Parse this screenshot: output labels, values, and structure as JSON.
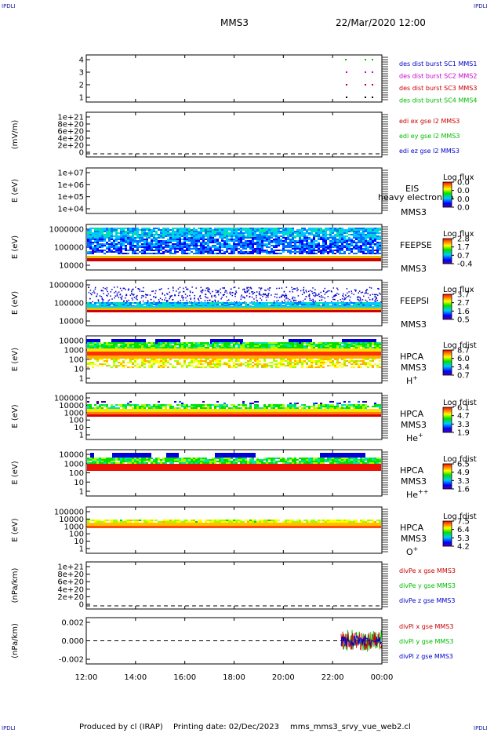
{
  "header": {
    "corner_left_top": "IPDLI",
    "corner_right_top": "IPDLI",
    "corner_left_bottom": "IPDLI",
    "corner_right_bottom": "IPDLI",
    "spacecraft": "MMS3",
    "datetime": "22/Mar/2020 12:00"
  },
  "footer": {
    "produced_by": "Produced by cl (IRAP)",
    "printing_date": "Printing date: 02/Dec/2023",
    "filename": "mms_mms3_srvy_vue_web2.cl"
  },
  "colors": {
    "mms1": "#0000cc",
    "mms2": "#cc00cc",
    "mms3": "#cc0000",
    "mms4": "#00bb00"
  },
  "chart_data": {
    "type": "multi-panel time series / spectrogram",
    "x_axis": {
      "range": [
        "12:00",
        "00:00"
      ],
      "tick_labels": [
        "12:00",
        "14:00",
        "16:00",
        "18:00",
        "20:00",
        "22:00",
        "00:00"
      ]
    },
    "panels": [
      {
        "id": "burst",
        "ylabel": "",
        "yticks": [
          "4",
          "3",
          "2",
          "1"
        ],
        "legend": [
          {
            "text": "des dist burst SC1 MMS1",
            "color": "#0000cc"
          },
          {
            "text": "des dist burst SC2 MMS2",
            "color": "#cc00cc"
          },
          {
            "text": "des dist burst SC3 MMS3",
            "color": "#cc0000"
          },
          {
            "text": "des dist burst SC4 MMS4",
            "color": "#00bb00"
          }
        ]
      },
      {
        "id": "edi",
        "ylabel": "(mV/m)",
        "yticks": [
          "1e+21",
          "8e+20",
          "6e+20",
          "4e+20",
          "2e+20",
          "0"
        ],
        "legend": [
          {
            "text": "edi ex gse l2 MMS3",
            "color": "#cc0000"
          },
          {
            "text": "edi ey gse l2 MMS3",
            "color": "#00bb00"
          },
          {
            "text": "edi ez gse l2 MMS3",
            "color": "#0000cc"
          }
        ]
      },
      {
        "id": "eis",
        "ylabel": "E (eV)",
        "yticks": [
          "1e+07",
          "1e+06",
          "1e+05",
          "1e+04"
        ],
        "instrument": "EIS",
        "spacecraft": "MMS3",
        "overlay_text": "heavy electron to",
        "colorbar": {
          "title": "Log flux",
          "ticks": [
            "0.0",
            "0.0",
            "0.0",
            "0.0"
          ]
        }
      },
      {
        "id": "feepse",
        "ylabel": "E (eV)",
        "yticks": [
          "1000000",
          "100000",
          "10000"
        ],
        "instrument": "FEEPSE",
        "spacecraft": "MMS3",
        "colorbar": {
          "title": "Log flux",
          "ticks": [
            "2.8",
            "1.7",
            "0.7",
            "-0.4"
          ]
        }
      },
      {
        "id": "feepsi",
        "ylabel": "E (eV)",
        "yticks": [
          "1000000",
          "100000",
          "10000"
        ],
        "instrument": "FEEPSI",
        "spacecraft": "MMS3",
        "colorbar": {
          "title": "Log flux",
          "ticks": [
            "3.7",
            "2.7",
            "1.6",
            "0.5"
          ]
        }
      },
      {
        "id": "hpca_h",
        "ylabel": "E (eV)",
        "yticks": [
          "10000",
          "1000",
          "100",
          "10",
          "1"
        ],
        "instrument": "HPCA",
        "spacecraft": "MMS3",
        "species": "H",
        "species_sup": "+",
        "colorbar": {
          "title": "Log fdist",
          "ticks": [
            "8.7",
            "6.0",
            "3.4",
            "0.7"
          ]
        }
      },
      {
        "id": "hpca_he",
        "ylabel": "E (eV)",
        "yticks": [
          "100000",
          "10000",
          "1000",
          "100",
          "10",
          "1"
        ],
        "instrument": "HPCA",
        "spacecraft": "MMS3",
        "species": "He",
        "species_sup": "+",
        "colorbar": {
          "title": "Log fdist",
          "ticks": [
            "6.1",
            "4.7",
            "3.3",
            "1.9"
          ]
        }
      },
      {
        "id": "hpca_hepp",
        "ylabel": "E (eV)",
        "yticks": [
          "10000",
          "1000",
          "100",
          "10",
          "1"
        ],
        "instrument": "HPCA",
        "spacecraft": "MMS3",
        "species": "He",
        "species_sup": "++",
        "colorbar": {
          "title": "Log fdist",
          "ticks": [
            "6.5",
            "4.9",
            "3.3",
            "1.6"
          ]
        }
      },
      {
        "id": "hpca_o",
        "ylabel": "E (eV)",
        "yticks": [
          "100000",
          "10000",
          "1000",
          "100",
          "10",
          "1"
        ],
        "instrument": "HPCA",
        "spacecraft": "MMS3",
        "species": "O",
        "species_sup": "+",
        "colorbar": {
          "title": "Log fdist",
          "ticks": [
            "7.5",
            "6.4",
            "5.3",
            "4.2"
          ]
        }
      },
      {
        "id": "divpe",
        "ylabel": "(nPa/km)",
        "yticks": [
          "1e+21",
          "8e+20",
          "6e+20",
          "4e+20",
          "2e+20",
          "0"
        ],
        "legend": [
          {
            "text": "divPe x gse MMS3",
            "color": "#cc0000"
          },
          {
            "text": "divPe y gse MMS3",
            "color": "#00bb00"
          },
          {
            "text": "divPe z gse MMS3",
            "color": "#0000cc"
          }
        ]
      },
      {
        "id": "divpi",
        "ylabel": "(nPa/km)",
        "yticks": [
          "0.002",
          "0.000",
          "-0.002"
        ],
        "legend": [
          {
            "text": "divPi x gse MMS3",
            "color": "#cc0000"
          },
          {
            "text": "divPi y gse MMS3",
            "color": "#00bb00"
          },
          {
            "text": "divPi z gse MMS3",
            "color": "#0000cc"
          }
        ]
      }
    ]
  }
}
